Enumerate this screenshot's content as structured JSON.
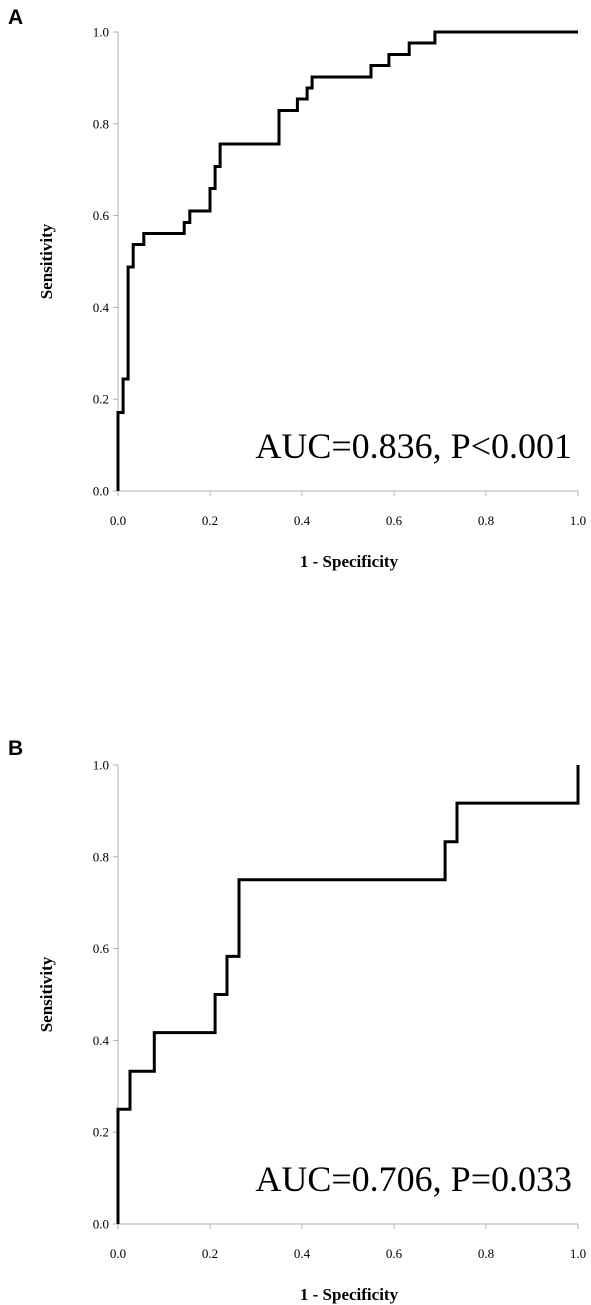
{
  "chart_data": [
    {
      "type": "line",
      "panel_label": "A",
      "xlabel": "1 - Specificity",
      "ylabel": "Sensitivity",
      "xlim": [
        0,
        1
      ],
      "ylim": [
        0,
        1
      ],
      "xticks": [
        "0.0",
        "0.2",
        "0.4",
        "0.6",
        "0.8",
        "1.0"
      ],
      "yticks": [
        "0.0",
        "0.2",
        "0.4",
        "0.6",
        "0.8",
        "1.0"
      ],
      "annotation": "AUC=0.836, P<0.001",
      "step": true,
      "series": [
        {
          "x": [
            0.0,
            0.0,
            0.011,
            0.011,
            0.022,
            0.022,
            0.033,
            0.033,
            0.044,
            0.044,
            0.056,
            0.056,
            0.144,
            0.144,
            0.156,
            0.156,
            0.2,
            0.2,
            0.211,
            0.211,
            0.222,
            0.222,
            0.35,
            0.35,
            0.39,
            0.39,
            0.411,
            0.411,
            0.422,
            0.422,
            0.433,
            0.433,
            0.55,
            0.55,
            0.589,
            0.589,
            0.633,
            0.633,
            0.689,
            0.689,
            1.0
          ],
          "y": [
            0.0,
            0.171,
            0.171,
            0.244,
            0.244,
            0.488,
            0.488,
            0.537,
            0.537,
            0.537,
            0.537,
            0.561,
            0.561,
            0.585,
            0.585,
            0.61,
            0.61,
            0.659,
            0.659,
            0.707,
            0.707,
            0.756,
            0.756,
            0.829,
            0.829,
            0.854,
            0.854,
            0.878,
            0.878,
            0.902,
            0.902,
            0.902,
            0.902,
            0.927,
            0.927,
            0.951,
            0.951,
            0.976,
            0.976,
            1.0,
            1.0
          ]
        }
      ]
    },
    {
      "type": "line",
      "panel_label": "B",
      "xlabel": "1 - Specificity",
      "ylabel": "Sensitivity",
      "xlim": [
        0,
        1
      ],
      "ylim": [
        0,
        1
      ],
      "xticks": [
        "0.0",
        "0.2",
        "0.4",
        "0.6",
        "0.8",
        "1.0"
      ],
      "yticks": [
        "0.0",
        "0.2",
        "0.4",
        "0.6",
        "0.8",
        "1.0"
      ],
      "annotation": "AUC=0.706, P=0.033",
      "step": true,
      "series": [
        {
          "x": [
            0.0,
            0.0,
            0.026,
            0.026,
            0.079,
            0.079,
            0.211,
            0.211,
            0.237,
            0.237,
            0.263,
            0.263,
            0.711,
            0.711,
            0.737,
            0.737,
            1.0,
            1.0
          ],
          "y": [
            0.0,
            0.25,
            0.25,
            0.333,
            0.333,
            0.417,
            0.417,
            0.5,
            0.5,
            0.583,
            0.583,
            0.75,
            0.75,
            0.833,
            0.833,
            0.917,
            0.917,
            1.0
          ]
        }
      ]
    }
  ]
}
